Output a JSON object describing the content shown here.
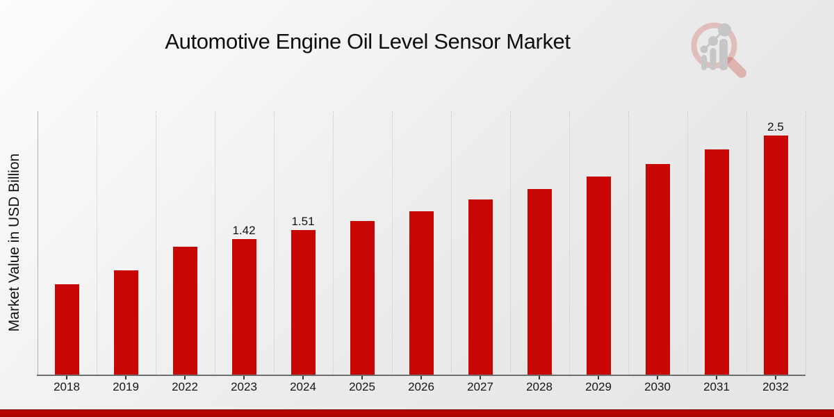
{
  "header": {
    "title": "Automotive Engine Oil Level Sensor Market"
  },
  "logo": {
    "icon": "magnifier-bar-chart-icon",
    "ring_color": "#d9a7a2",
    "glyph_color": "#c6c6c6"
  },
  "chart_data": {
    "type": "bar",
    "title": "Automotive Engine Oil Level Sensor Market",
    "xlabel": "",
    "ylabel": "Market Value in USD Billion",
    "categories": [
      "2018",
      "2019",
      "2022",
      "2023",
      "2024",
      "2025",
      "2026",
      "2027",
      "2028",
      "2029",
      "2030",
      "2031",
      "2032"
    ],
    "values": [
      0.95,
      1.09,
      1.34,
      1.42,
      1.51,
      1.61,
      1.71,
      1.83,
      1.94,
      2.07,
      2.2,
      2.35,
      2.5
    ],
    "bar_value_labels": [
      "",
      "",
      "",
      "1.42",
      "1.51",
      "",
      "",
      "",
      "",
      "",
      "",
      "",
      "2.5"
    ],
    "ylim": [
      0,
      2.75
    ],
    "bar_color": "#c80603",
    "grid": "vertical-dotted",
    "legend": "none",
    "y_axis_ticks_visible": false
  },
  "footer": {
    "band_color": "#b30500"
  }
}
